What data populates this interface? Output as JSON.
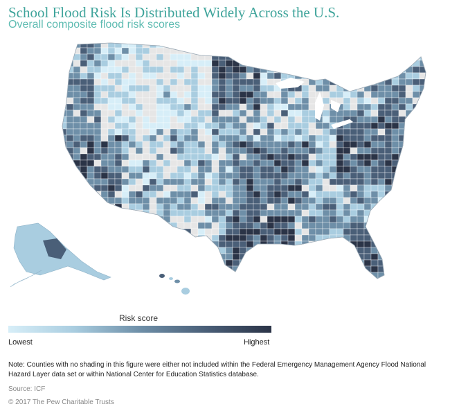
{
  "title": "School Flood Risk Is Distributed Widely Across the U.S.",
  "subtitle": "Overall composite flood risk scores",
  "legend": {
    "title": "Risk score",
    "low_label": "Lowest",
    "high_label": "Highest",
    "colors": [
      "#d7eef8",
      "#a9cde0",
      "#6e8fa8",
      "#4a5f78",
      "#2b3447"
    ],
    "no_data_color": "#e6e6e6"
  },
  "note": "Note: Counties with no shading in this figure were either not included within the Federal Emergency Management Agency Flood National Hazard Layer data set or within National Center for Education Statistics database.",
  "source": "Source: ICF",
  "copyright": "© 2017 The Pew Charitable Trusts"
}
